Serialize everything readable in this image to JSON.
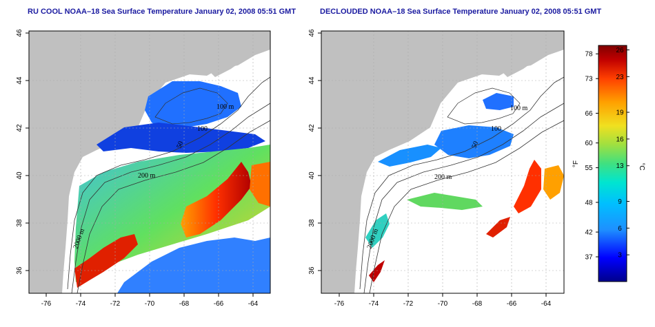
{
  "left_panel": {
    "title": "RU COOL NOAA–18 Sea Surface Temperature January 02, 2008 05:51 GMT",
    "x_ticks": [
      "-76",
      "-74",
      "-72",
      "-70",
      "-68",
      "-66",
      "-64"
    ],
    "y_ticks": [
      "46",
      "44",
      "42",
      "40",
      "38",
      "36"
    ],
    "contour_labels": [
      "100 m",
      "100",
      "200 m",
      "2000 m",
      "50"
    ]
  },
  "right_panel": {
    "title": "DECLOUDED NOAA–18 Sea Surface Temperature January 02, 2008 05:51 GMT",
    "x_ticks": [
      "-76",
      "-74",
      "-72",
      "-70",
      "-68",
      "-66",
      "-64"
    ],
    "y_ticks": [
      "46",
      "44",
      "42",
      "40",
      "38",
      "36"
    ],
    "contour_labels": [
      "100 m",
      "100",
      "200 m",
      "2000 m",
      "50"
    ]
  },
  "colorbar": {
    "f_label": "°F",
    "c_label": "°C",
    "f_ticks": [
      "78",
      "73",
      "66",
      "60",
      "55",
      "48",
      "42",
      "37"
    ],
    "c_ticks": [
      "26",
      "23",
      "19",
      "16",
      "13",
      "9",
      "6",
      "3"
    ],
    "f_values": [
      78,
      73,
      66,
      60,
      55,
      48,
      42,
      37
    ],
    "c_values": [
      26,
      23,
      19,
      16,
      13,
      9,
      6,
      3
    ],
    "range_c": [
      0,
      26.5
    ],
    "colors": [
      "#00008b",
      "#0000ff",
      "#1e90ff",
      "#00bfff",
      "#00e5d0",
      "#40e080",
      "#a0e040",
      "#f0e020",
      "#ffa000",
      "#ff4000",
      "#c00000",
      "#800000"
    ]
  },
  "axes": {
    "lon_range": [
      -77,
      -63
    ],
    "lat_range": [
      35,
      46
    ]
  }
}
